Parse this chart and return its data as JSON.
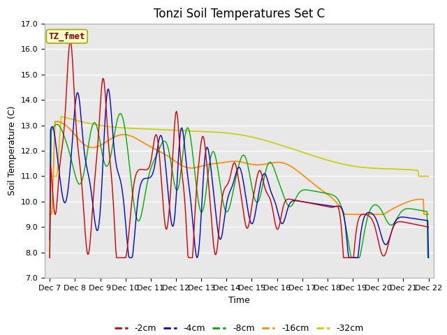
{
  "title": "Tonzi Soil Temperatures Set C",
  "xlabel": "Time",
  "ylabel": "Soil Temperature (C)",
  "ylim": [
    7.0,
    17.0
  ],
  "yticks": [
    7.0,
    8.0,
    9.0,
    10.0,
    11.0,
    12.0,
    13.0,
    14.0,
    15.0,
    16.0,
    17.0
  ],
  "xtick_labels": [
    "Dec 7",
    "Dec 8",
    "Dec 9",
    "Dec 10",
    "Dec 11",
    "Dec 12",
    "Dec 13",
    "Dec 14",
    "Dec 15",
    "Dec 16",
    "Dec 17",
    "Dec 18",
    "Dec 19",
    "Dec 20",
    "Dec 21",
    "Dec 22"
  ],
  "series_colors": [
    "#cc0000",
    "#0000cc",
    "#00aa00",
    "#ff8800",
    "#cccc00"
  ],
  "series_labels": [
    "-2cm",
    "-4cm",
    "-8cm",
    "-16cm",
    "-32cm"
  ],
  "annotation_text": "TZ_fmet",
  "annotation_color": "#880000",
  "annotation_bg": "#ffffcc",
  "annotation_edge": "#aaaa00",
  "plot_bg": "#e8e8e8",
  "grid_color": "#ffffff",
  "title_fontsize": 12,
  "label_fontsize": 9,
  "tick_fontsize": 8
}
